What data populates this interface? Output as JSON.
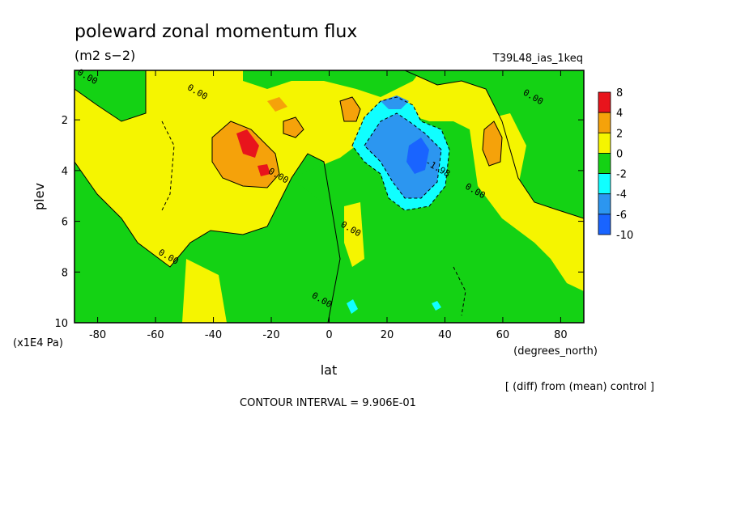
{
  "chart_data": {
    "type": "filled-contour",
    "title": "poleward zonal momentum flux",
    "units": "(m2 s−2)",
    "run_label": "T39L48_ias_1keq",
    "diff_label": "[ (diff) from (mean) control ]",
    "contour_interval": "CONTOUR INTERVAL = 9.906E-01",
    "xlabel": "lat",
    "xunits": "(degrees_north)",
    "ylabel": "plev",
    "yunits": "(x1E4 Pa)",
    "xlim": [
      -88,
      88
    ],
    "ylim": [
      0.05,
      10
    ],
    "y_inverted": true,
    "x_ticks": [
      -80,
      -60,
      -40,
      -20,
      0,
      20,
      40,
      60,
      80
    ],
    "y_ticks": [
      2,
      4,
      6,
      8,
      10
    ],
    "colorbar": {
      "levels": [
        8,
        4,
        2,
        0,
        -2,
        -4,
        -6,
        -10
      ],
      "colors": [
        "#e8141c",
        "#f5a20a",
        "#f5f500",
        "#14d214",
        "#10ffff",
        "#2c96f0",
        "#1964ff"
      ]
    },
    "contour_labels": [
      {
        "text": "0.00",
        "x": -84,
        "y": 0.4
      },
      {
        "text": "0.00",
        "x": -46,
        "y": 1.0
      },
      {
        "text": "0.00",
        "x": -18,
        "y": 4.3
      },
      {
        "text": "0.00",
        "x": 7,
        "y": 6.4
      },
      {
        "text": "0.00",
        "x": -56,
        "y": 7.5
      },
      {
        "text": "0.00",
        "x": -3,
        "y": 9.2
      },
      {
        "text": "0.00",
        "x": 50,
        "y": 4.9
      },
      {
        "text": "0.00",
        "x": 70,
        "y": 1.2
      },
      {
        "text": "-1.98",
        "x": 37,
        "y": 4.0
      }
    ],
    "field_regions": [
      {
        "level": "0 to 2",
        "note": "background"
      },
      {
        "level": "-2 to 0",
        "region": "lower and mid troposphere, most latitudes"
      },
      {
        "level": "2 to 4",
        "region": "around -35 lat, 3-4.5 plev"
      },
      {
        "level": "4 to 8",
        "region": "around -30 lat, 3 plev"
      },
      {
        "level": "-6 to -2",
        "region": "around 25 lat, 2.5-5 plev"
      }
    ]
  }
}
